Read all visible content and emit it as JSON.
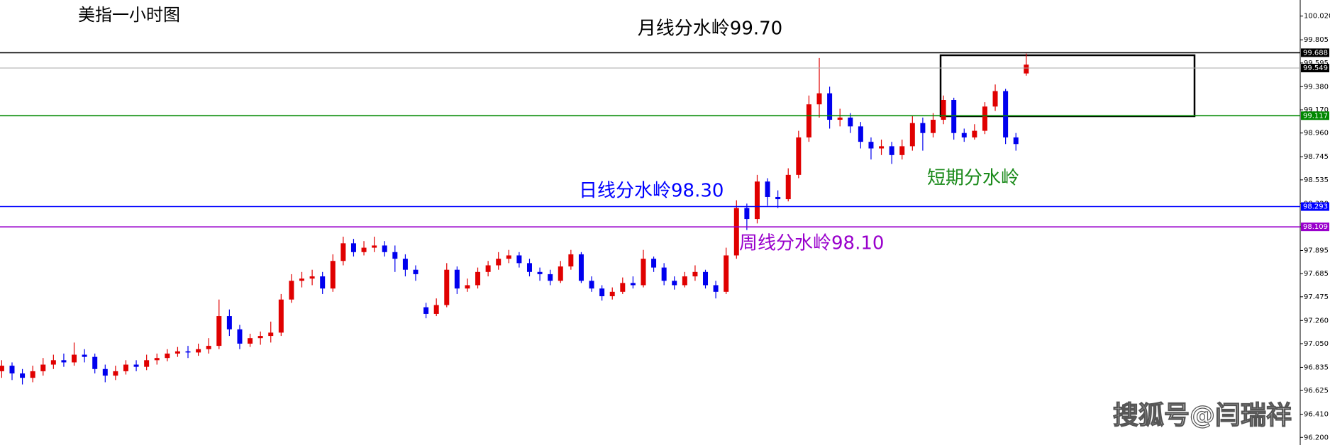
{
  "chart_data": {
    "type": "candlestick",
    "title": "美指一小时图",
    "annotations": [
      {
        "text": "月线分水岭99.70",
        "color": "#000000"
      },
      {
        "text": "日线分水岭98.30",
        "color": "#0000ff"
      },
      {
        "text": "周线分水岭98.10",
        "color": "#9900cc"
      },
      {
        "text": "短期分水岭",
        "color": "#1a8a1a"
      }
    ],
    "watermark": "搜狐号@闫瑞祥",
    "up_color": "#e00000",
    "down_color": "#0000ee",
    "ylim": [
      96.131,
      100.166
    ],
    "yticks": [
      {
        "value": 100.02,
        "label": "100.020"
      },
      99.805,
      99.595,
      {
        "value": 99.38,
        "label": "99.380"
      },
      {
        "value": 99.17,
        "label": "99.170"
      },
      {
        "value": 98.96,
        "label": "98.960"
      },
      98.745,
      98.535,
      {
        "value": 98.32,
        "label": "98.320"
      },
      {
        "value": 98.11,
        "label": "98.110"
      },
      97.895,
      97.685,
      97.475,
      {
        "value": 97.26,
        "label": "97.260"
      },
      {
        "value": 97.05,
        "label": "97.050"
      },
      96.835,
      96.625,
      {
        "value": 96.41,
        "label": "96.410"
      },
      {
        "value": 96.2,
        "label": "96.200"
      }
    ],
    "levels": [
      {
        "value": 99.688,
        "color": "#000000"
      },
      {
        "value": 99.549,
        "color": "#aaaaaa"
      },
      {
        "value": 99.117,
        "color": "#008800"
      },
      {
        "value": 98.293,
        "color": "#0000ff"
      },
      {
        "value": 98.109,
        "color": "#9900cc"
      }
    ],
    "ohlc": [
      [
        96.8,
        96.9,
        96.74,
        96.85
      ],
      [
        96.85,
        96.88,
        96.72,
        96.78
      ],
      [
        96.78,
        96.82,
        96.68,
        96.74
      ],
      [
        96.74,
        96.85,
        96.7,
        96.8
      ],
      [
        96.8,
        96.92,
        96.76,
        96.86
      ],
      [
        96.86,
        96.95,
        96.82,
        96.9
      ],
      [
        96.9,
        96.96,
        96.84,
        96.88
      ],
      [
        96.88,
        97.06,
        96.85,
        96.95
      ],
      [
        96.95,
        97.0,
        96.88,
        96.93
      ],
      [
        96.93,
        96.96,
        96.78,
        96.82
      ],
      [
        96.82,
        96.86,
        96.7,
        96.76
      ],
      [
        96.76,
        96.85,
        96.72,
        96.8
      ],
      [
        96.8,
        96.9,
        96.77,
        96.86
      ],
      [
        96.86,
        96.9,
        96.8,
        96.84
      ],
      [
        96.84,
        96.95,
        96.81,
        96.9
      ],
      [
        96.9,
        96.96,
        96.86,
        96.92
      ],
      [
        96.92,
        97.0,
        96.89,
        96.96
      ],
      [
        96.96,
        97.02,
        96.93,
        96.98
      ],
      [
        96.98,
        97.03,
        96.92,
        96.97
      ],
      [
        96.97,
        97.05,
        96.94,
        97.0
      ],
      [
        97.0,
        97.1,
        96.96,
        97.03
      ],
      [
        97.03,
        97.45,
        97.0,
        97.3
      ],
      [
        97.3,
        97.36,
        97.12,
        97.18
      ],
      [
        97.18,
        97.22,
        97.0,
        97.05
      ],
      [
        97.05,
        97.14,
        97.02,
        97.1
      ],
      [
        97.1,
        97.16,
        97.04,
        97.12
      ],
      [
        97.12,
        97.25,
        97.06,
        97.15
      ],
      [
        97.15,
        97.5,
        97.12,
        97.45
      ],
      [
        97.45,
        97.68,
        97.42,
        97.62
      ],
      [
        97.62,
        97.7,
        97.56,
        97.64
      ],
      [
        97.64,
        97.72,
        97.58,
        97.66
      ],
      [
        97.66,
        97.7,
        97.5,
        97.55
      ],
      [
        97.55,
        97.86,
        97.52,
        97.8
      ],
      [
        97.8,
        98.02,
        97.76,
        97.96
      ],
      [
        97.96,
        98.0,
        97.84,
        97.88
      ],
      [
        97.88,
        97.98,
        97.85,
        97.92
      ],
      [
        97.92,
        98.02,
        97.88,
        97.94
      ],
      [
        97.94,
        97.98,
        97.84,
        97.88
      ],
      [
        97.88,
        97.94,
        97.7,
        97.82
      ],
      [
        97.82,
        97.86,
        97.66,
        97.72
      ],
      [
        97.72,
        97.76,
        97.62,
        97.68
      ],
      [
        97.38,
        97.42,
        97.28,
        97.32
      ],
      [
        97.32,
        97.46,
        97.3,
        97.4
      ],
      [
        97.4,
        97.78,
        97.38,
        97.72
      ],
      [
        97.72,
        97.75,
        97.5,
        97.55
      ],
      [
        97.55,
        97.64,
        97.52,
        97.58
      ],
      [
        97.58,
        97.74,
        97.55,
        97.7
      ],
      [
        97.7,
        97.8,
        97.66,
        97.76
      ],
      [
        97.76,
        97.88,
        97.72,
        97.82
      ],
      [
        97.82,
        97.9,
        97.78,
        97.85
      ],
      [
        97.85,
        97.88,
        97.74,
        97.78
      ],
      [
        97.78,
        97.82,
        97.66,
        97.7
      ],
      [
        97.7,
        97.74,
        97.62,
        97.68
      ],
      [
        97.68,
        97.72,
        97.58,
        97.62
      ],
      [
        97.62,
        97.8,
        97.6,
        97.75
      ],
      [
        97.75,
        97.9,
        97.72,
        97.86
      ],
      [
        97.86,
        97.88,
        97.6,
        97.62
      ],
      [
        97.62,
        97.66,
        97.52,
        97.55
      ],
      [
        97.55,
        97.58,
        97.44,
        97.48
      ],
      [
        97.48,
        97.56,
        97.45,
        97.52
      ],
      [
        97.52,
        97.65,
        97.5,
        97.6
      ],
      [
        97.6,
        97.66,
        97.55,
        97.58
      ],
      [
        97.58,
        97.9,
        97.56,
        97.82
      ],
      [
        97.82,
        97.84,
        97.7,
        97.74
      ],
      [
        97.74,
        97.78,
        97.58,
        97.62
      ],
      [
        97.62,
        97.66,
        97.54,
        97.58
      ],
      [
        97.58,
        97.7,
        97.56,
        97.66
      ],
      [
        97.66,
        97.76,
        97.62,
        97.7
      ],
      [
        97.7,
        97.72,
        97.55,
        97.58
      ],
      [
        97.58,
        97.62,
        97.46,
        97.52
      ],
      [
        97.52,
        97.92,
        97.5,
        97.85
      ],
      [
        97.85,
        98.35,
        97.82,
        98.28
      ],
      [
        98.28,
        98.32,
        98.08,
        98.18
      ],
      [
        98.18,
        98.58,
        98.14,
        98.52
      ],
      [
        98.52,
        98.55,
        98.3,
        98.38
      ],
      [
        98.38,
        98.44,
        98.28,
        98.36
      ],
      [
        98.36,
        98.64,
        98.34,
        98.58
      ],
      [
        98.58,
        98.98,
        98.55,
        98.92
      ],
      [
        98.92,
        99.3,
        98.88,
        99.22
      ],
      [
        99.22,
        99.64,
        99.1,
        99.32
      ],
      [
        99.32,
        99.38,
        99.0,
        99.08
      ],
      [
        99.08,
        99.18,
        99.02,
        99.1
      ],
      [
        99.1,
        99.14,
        98.96,
        99.02
      ],
      [
        99.02,
        99.06,
        98.82,
        98.88
      ],
      [
        98.88,
        98.92,
        98.72,
        98.82
      ],
      [
        98.82,
        98.9,
        98.76,
        98.84
      ],
      [
        98.84,
        98.88,
        98.68,
        98.76
      ],
      [
        98.76,
        98.9,
        98.72,
        98.84
      ],
      [
        98.84,
        99.12,
        98.8,
        99.05
      ],
      [
        99.05,
        99.1,
        98.8,
        98.96
      ],
      [
        98.96,
        99.14,
        98.92,
        99.08
      ],
      [
        99.08,
        99.3,
        99.04,
        99.26
      ],
      [
        99.26,
        99.28,
        98.9,
        98.96
      ],
      [
        98.96,
        99.0,
        98.88,
        98.92
      ],
      [
        98.92,
        99.04,
        98.9,
        98.98
      ],
      [
        98.98,
        99.24,
        98.95,
        99.2
      ],
      [
        99.2,
        99.4,
        99.16,
        99.34
      ],
      [
        99.34,
        99.36,
        98.86,
        98.92
      ],
      [
        98.92,
        98.96,
        98.8,
        98.86
      ],
      [
        99.5,
        99.68,
        99.48,
        99.58
      ]
    ]
  }
}
